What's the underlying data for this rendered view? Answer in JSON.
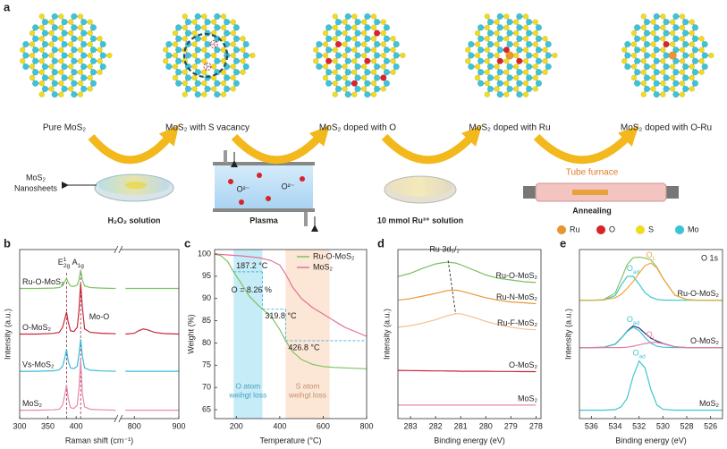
{
  "panel_a": {
    "label": "a",
    "structures": [
      "Pure MoS₂",
      "MoS₂ with S vacancy",
      "MoS₂ doped with O",
      "MoS₂ doped with Ru",
      "MoS₂ doped with O-Ru"
    ],
    "nanosheets": [
      "MoS₂",
      "Nanosheets"
    ],
    "steps": [
      {
        "label": "H₂O₂ solution"
      },
      {
        "label": "Plasma",
        "ions": [
          "O²⁻",
          "O²⁻"
        ]
      },
      {
        "label": "10 mmol Ru³⁺ solution"
      },
      {
        "label": "Annealing",
        "device": "Tube furnace"
      }
    ],
    "legend": [
      {
        "name": "Ru",
        "color": "#e8962e"
      },
      {
        "name": "O",
        "color": "#d9232a"
      },
      {
        "name": "S",
        "color": "#f0dc1e"
      },
      {
        "name": "Mo",
        "color": "#3cc3d8"
      }
    ]
  },
  "chart_data": [
    {
      "type": "line",
      "label": "b",
      "xlabel": "Raman shift (cm⁻¹)",
      "ylabel": "Intensity (a.u.)",
      "xlim": [
        300,
        900
      ],
      "axis_break": [
        470,
        770
      ],
      "xticks": [
        300,
        350,
        400,
        800,
        900
      ],
      "ylim": [
        0,
        100
      ],
      "x": [
        300,
        330,
        360,
        370,
        376,
        380,
        383,
        386,
        390,
        396,
        402,
        405,
        408,
        411,
        415,
        425,
        445,
        470,
        780,
        800,
        810,
        820,
        830,
        845,
        865,
        900
      ],
      "series": [
        {
          "name": "Ru-O-MoS₂",
          "color": "#7cc460",
          "values": [
            77,
            77,
            77.2,
            77.5,
            78.5,
            81,
            83,
            80.5,
            78.5,
            78.2,
            79,
            82,
            88,
            82,
            78.5,
            77.5,
            77.2,
            77,
            77,
            77,
            77,
            77,
            77,
            77,
            77,
            77
          ]
        },
        {
          "name": "O-MoS₂",
          "color": "#c8283a",
          "values": [
            50,
            50,
            50.4,
            51,
            54,
            59,
            63,
            57,
            52,
            51.5,
            54,
            64,
            80,
            66,
            53,
            51,
            50.5,
            50.2,
            50,
            50.5,
            52,
            53,
            52.5,
            51,
            50.3,
            50
          ]
        },
        {
          "name": "Vs-MoS₂",
          "color": "#3cbadc",
          "values": [
            28,
            28,
            28.3,
            28.8,
            31,
            36,
            41,
            34,
            30,
            29.5,
            31,
            38,
            47,
            37,
            30,
            28.6,
            28.2,
            28,
            28,
            28,
            28,
            28,
            28,
            28,
            28,
            28
          ]
        },
        {
          "name": "MoS₂",
          "color": "#e88aa8",
          "values": [
            5,
            5,
            5.2,
            5.5,
            8,
            14,
            20,
            12,
            6.5,
            6,
            8,
            18,
            35,
            15,
            7,
            5.5,
            5.2,
            5,
            5,
            5,
            5,
            5,
            5,
            5,
            5,
            5
          ]
        }
      ],
      "reference_lines": [
        {
          "x": 383,
          "label": {
            "main": "E",
            "sup": "1",
            "sub": "2g"
          }
        },
        {
          "x": 408,
          "label": {
            "main": "A",
            "sub": "1g"
          }
        }
      ],
      "annotations": [
        {
          "text": "Mo-O"
        }
      ]
    },
    {
      "type": "line",
      "label": "c",
      "xlabel": "Temperature (°C)",
      "ylabel": "Weight (%)",
      "xlim": [
        100,
        800
      ],
      "xticks": [
        200,
        400,
        600,
        800
      ],
      "ylim": [
        63,
        101
      ],
      "yticks": [
        65,
        70,
        75,
        80,
        85,
        90,
        95,
        100
      ],
      "legend": "upper right",
      "x": [
        100,
        130,
        160,
        187.2,
        220,
        260,
        300,
        319.8,
        360,
        400,
        426.8,
        460,
        500,
        550,
        600,
        650,
        700,
        750,
        800
      ],
      "series": [
        {
          "name": "Ru-O-MoS₂",
          "color": "#7cc460",
          "values": [
            100,
            99.6,
            98.3,
            96,
            93.6,
            90.5,
            88.5,
            87.6,
            86,
            83,
            80.5,
            78,
            76.3,
            75.2,
            74.7,
            74.5,
            74.4,
            74.3,
            74.2
          ]
        },
        {
          "name": "MoS₂",
          "color": "#e0709a",
          "values": [
            100,
            99.9,
            99.8,
            99.7,
            99.6,
            99.4,
            99.2,
            99,
            98.5,
            97.5,
            95.5,
            92.5,
            90,
            88,
            86.5,
            85,
            83.5,
            82.5,
            81.5
          ]
        }
      ],
      "shaded_regions": [
        {
          "x": [
            187.2,
            319.8
          ],
          "color": "#5bc8ec",
          "label": [
            "O atom",
            "weihgt loss"
          ]
        },
        {
          "x": [
            426.8,
            630
          ],
          "color": "#f5b889",
          "label": [
            "S atom",
            "weihgt loss"
          ]
        }
      ],
      "annotations": [
        {
          "text": "187.2 °C",
          "x": 187.2
        },
        {
          "text": "319.8 °C",
          "x": 319.8
        },
        {
          "text": "426.8 °C",
          "x": 426.8
        }
      ],
      "note": "O = 8.26 %"
    },
    {
      "type": "line",
      "label": "d",
      "xlabel": "Binding energy (eV)",
      "ylabel": "Intensity (a.u.)",
      "xlim": [
        283.5,
        277.8
      ],
      "xticks": [
        283,
        282,
        281,
        280,
        279,
        278
      ],
      "ylim": [
        0,
        100
      ],
      "x": [
        283.5,
        283,
        282.5,
        282,
        281.7,
        281.5,
        281.2,
        281,
        280.5,
        280,
        279.5,
        279,
        278.5,
        278
      ],
      "series": [
        {
          "name": "Ru-O-MoS₂",
          "color": "#7cbf5a",
          "values": [
            84,
            86,
            89,
            91.5,
            92.3,
            92.5,
            92,
            91,
            88,
            85,
            83,
            82,
            81,
            80.5
          ]
        },
        {
          "name": "Ru-N-MoS₂",
          "color": "#e8983a",
          "values": [
            70,
            71,
            72.5,
            74,
            75.2,
            75.8,
            76,
            75.5,
            73.5,
            71.5,
            70,
            69,
            68.5,
            68
          ]
        },
        {
          "name": "Ru-F-MoS₂",
          "color": "#f5c08a",
          "values": [
            54,
            55,
            56.5,
            58.5,
            60,
            61,
            62,
            62,
            60,
            57.5,
            55.5,
            54,
            53,
            52.5
          ]
        },
        {
          "name": "O-MoS₂",
          "color": "#c8283a",
          "values": [
            28.5,
            28.4,
            28.3,
            28.2,
            28.2,
            28.1,
            28.1,
            28,
            28,
            28,
            27.9,
            27.9,
            27.8,
            27.8
          ]
        },
        {
          "name": "MoS₂",
          "color": "#e88aa8",
          "values": [
            8,
            8,
            8,
            8,
            8,
            8,
            8,
            8,
            8,
            8,
            8,
            8,
            8,
            8
          ]
        }
      ],
      "annotation": "Ru 3d₅/₂"
    },
    {
      "type": "line",
      "label": "e",
      "title": "O 1s",
      "xlabel": "Binding energy (eV)",
      "ylabel": "Intensity (a.u.)",
      "xlim": [
        537,
        525
      ],
      "xticks": [
        536,
        534,
        532,
        530,
        528,
        526
      ],
      "ylim": [
        0,
        100
      ],
      "x": [
        537,
        536,
        535,
        534,
        533.5,
        533,
        532.5,
        532,
        531.5,
        531,
        530.5,
        530,
        529,
        528,
        527,
        526,
        525
      ],
      "series": [
        {
          "name": "Ru-O-MoS₂",
          "color": "#8cc26a",
          "values": [
            70,
            70,
            70.3,
            74.3,
            82.5,
            91,
            95.2,
            95.5,
            95,
            93.8,
            89.5,
            83.1,
            73,
            70.4,
            70,
            70,
            70
          ]
        },
        {
          "label": {
            "main": "O",
            "sub": "ad"
          },
          "color": "#3cc6d0",
          "values": [
            70,
            70,
            70.1,
            72.8,
            79,
            84,
            84.2,
            79.5,
            74.5,
            71.8,
            70.5,
            70.1,
            70,
            70,
            70,
            70,
            70
          ]
        },
        {
          "label": {
            "main": "O",
            "sub": "L"
          },
          "color": "#f0a838",
          "values": [
            70,
            70,
            70.2,
            71.5,
            73.5,
            77,
            81,
            86,
            90.5,
            92,
            89,
            83,
            73,
            70.4,
            70,
            70,
            70
          ]
        },
        {
          "name": "O-MoS₂",
          "color": "#2e3080",
          "values": [
            42,
            42,
            42.1,
            44,
            47.5,
            51.7,
            54.8,
            53.6,
            50.4,
            47.5,
            45.8,
            44.5,
            42.5,
            42,
            42,
            42,
            42
          ]
        },
        {
          "label": {
            "main": "O",
            "sub": "ad"
          },
          "color": "#3cc6d0",
          "values": [
            42,
            42,
            42.1,
            44,
            47.5,
            51.5,
            54,
            52,
            48,
            44.5,
            42.8,
            42.2,
            42,
            42,
            42,
            42,
            42
          ]
        },
        {
          "label": {
            "main": "O",
            "sub": "L"
          },
          "color": "#e87aa0",
          "values": [
            42,
            42,
            42,
            42,
            42,
            42.2,
            42.8,
            43.6,
            44.4,
            45,
            45,
            44.3,
            42.5,
            42,
            42,
            42,
            42
          ]
        },
        {
          "name": "MoS₂",
          "label": {
            "main": "O",
            "sub": "ad"
          },
          "color": "#3cc6d0",
          "values": [
            5,
            5,
            5,
            5.3,
            7,
            12,
            25,
            34,
            30,
            17,
            8,
            5.5,
            5,
            5,
            5,
            5,
            5
          ]
        }
      ]
    }
  ]
}
